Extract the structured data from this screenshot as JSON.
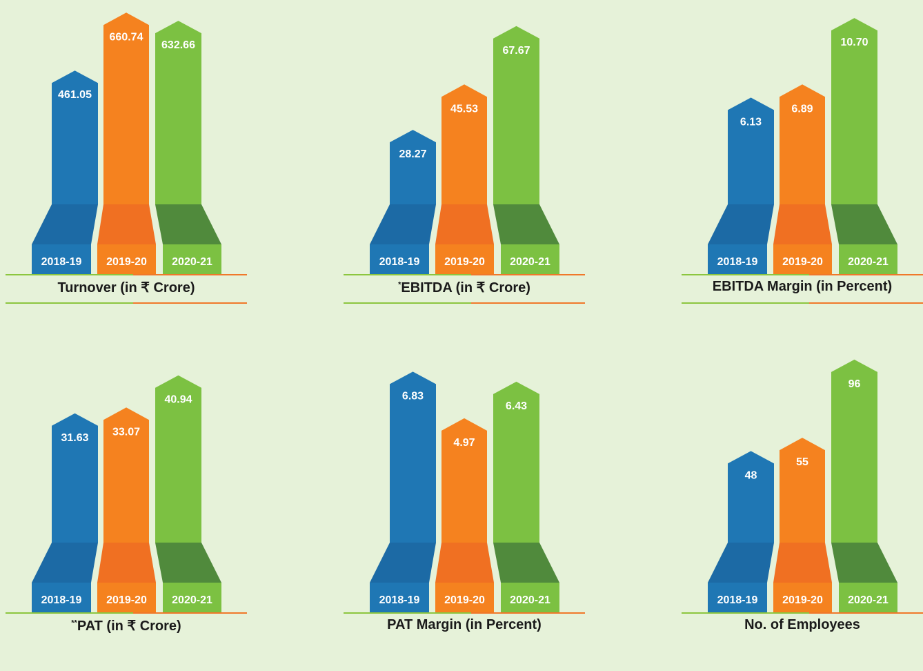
{
  "colors": {
    "c2018": "#1f77b4",
    "c2018_dark": "#1c6aa5",
    "c2019": "#f5821f",
    "c2019_dark": "#f07022",
    "c2020": "#7cc142",
    "c2020_dark": "#508a3c",
    "line_green": "#8cc63f",
    "line_orange": "#f0782a"
  },
  "chart_data": [
    {
      "type": "bar",
      "title": "Turnover (in ₹ Crore)",
      "title_prefix": "",
      "categories": [
        "2018-19",
        "2019-20",
        "2020-21"
      ],
      "values": [
        461.05,
        660.74,
        632.66
      ],
      "labels": [
        "461.05",
        "660.74",
        "632.66"
      ],
      "ylim": [
        0,
        690
      ]
    },
    {
      "type": "bar",
      "title": "EBITDA (in ₹ Crore)",
      "title_prefix": "*",
      "categories": [
        "2018-19",
        "2019-20",
        "2020-21"
      ],
      "values": [
        28.27,
        45.53,
        67.67
      ],
      "labels": [
        "28.27",
        "45.53",
        "67.67"
      ],
      "ylim": [
        0,
        76
      ]
    },
    {
      "type": "bar",
      "title": "EBITDA Margin (in Percent)",
      "title_prefix": "",
      "categories": [
        "2018-19",
        "2019-20",
        "2020-21"
      ],
      "values": [
        6.13,
        6.89,
        10.7
      ],
      "labels": [
        "6.13",
        "6.89",
        "10.70"
      ],
      "ylim": [
        0,
        11.5
      ]
    },
    {
      "type": "bar",
      "title": "PAT (in ₹ Crore)",
      "title_prefix": "**",
      "categories": [
        "2018-19",
        "2019-20",
        "2020-21"
      ],
      "values": [
        31.63,
        33.07,
        40.94
      ],
      "labels": [
        "31.63",
        "33.07",
        "40.94"
      ],
      "ylim": [
        0,
        49
      ]
    },
    {
      "type": "bar",
      "title": "PAT Margin (in Percent)",
      "title_prefix": "",
      "categories": [
        "2018-19",
        "2019-20",
        "2020-21"
      ],
      "values": [
        6.83,
        4.97,
        6.43
      ],
      "labels": [
        "6.83",
        "4.97",
        "6.43"
      ],
      "ylim": [
        0,
        8
      ]
    },
    {
      "type": "bar",
      "title": "No. of Employees",
      "title_prefix": "",
      "categories": [
        "2018-19",
        "2019-20",
        "2020-21"
      ],
      "values": [
        48,
        55,
        96
      ],
      "labels": [
        "48",
        "55",
        "96"
      ],
      "ylim": [
        0,
        105
      ]
    }
  ]
}
